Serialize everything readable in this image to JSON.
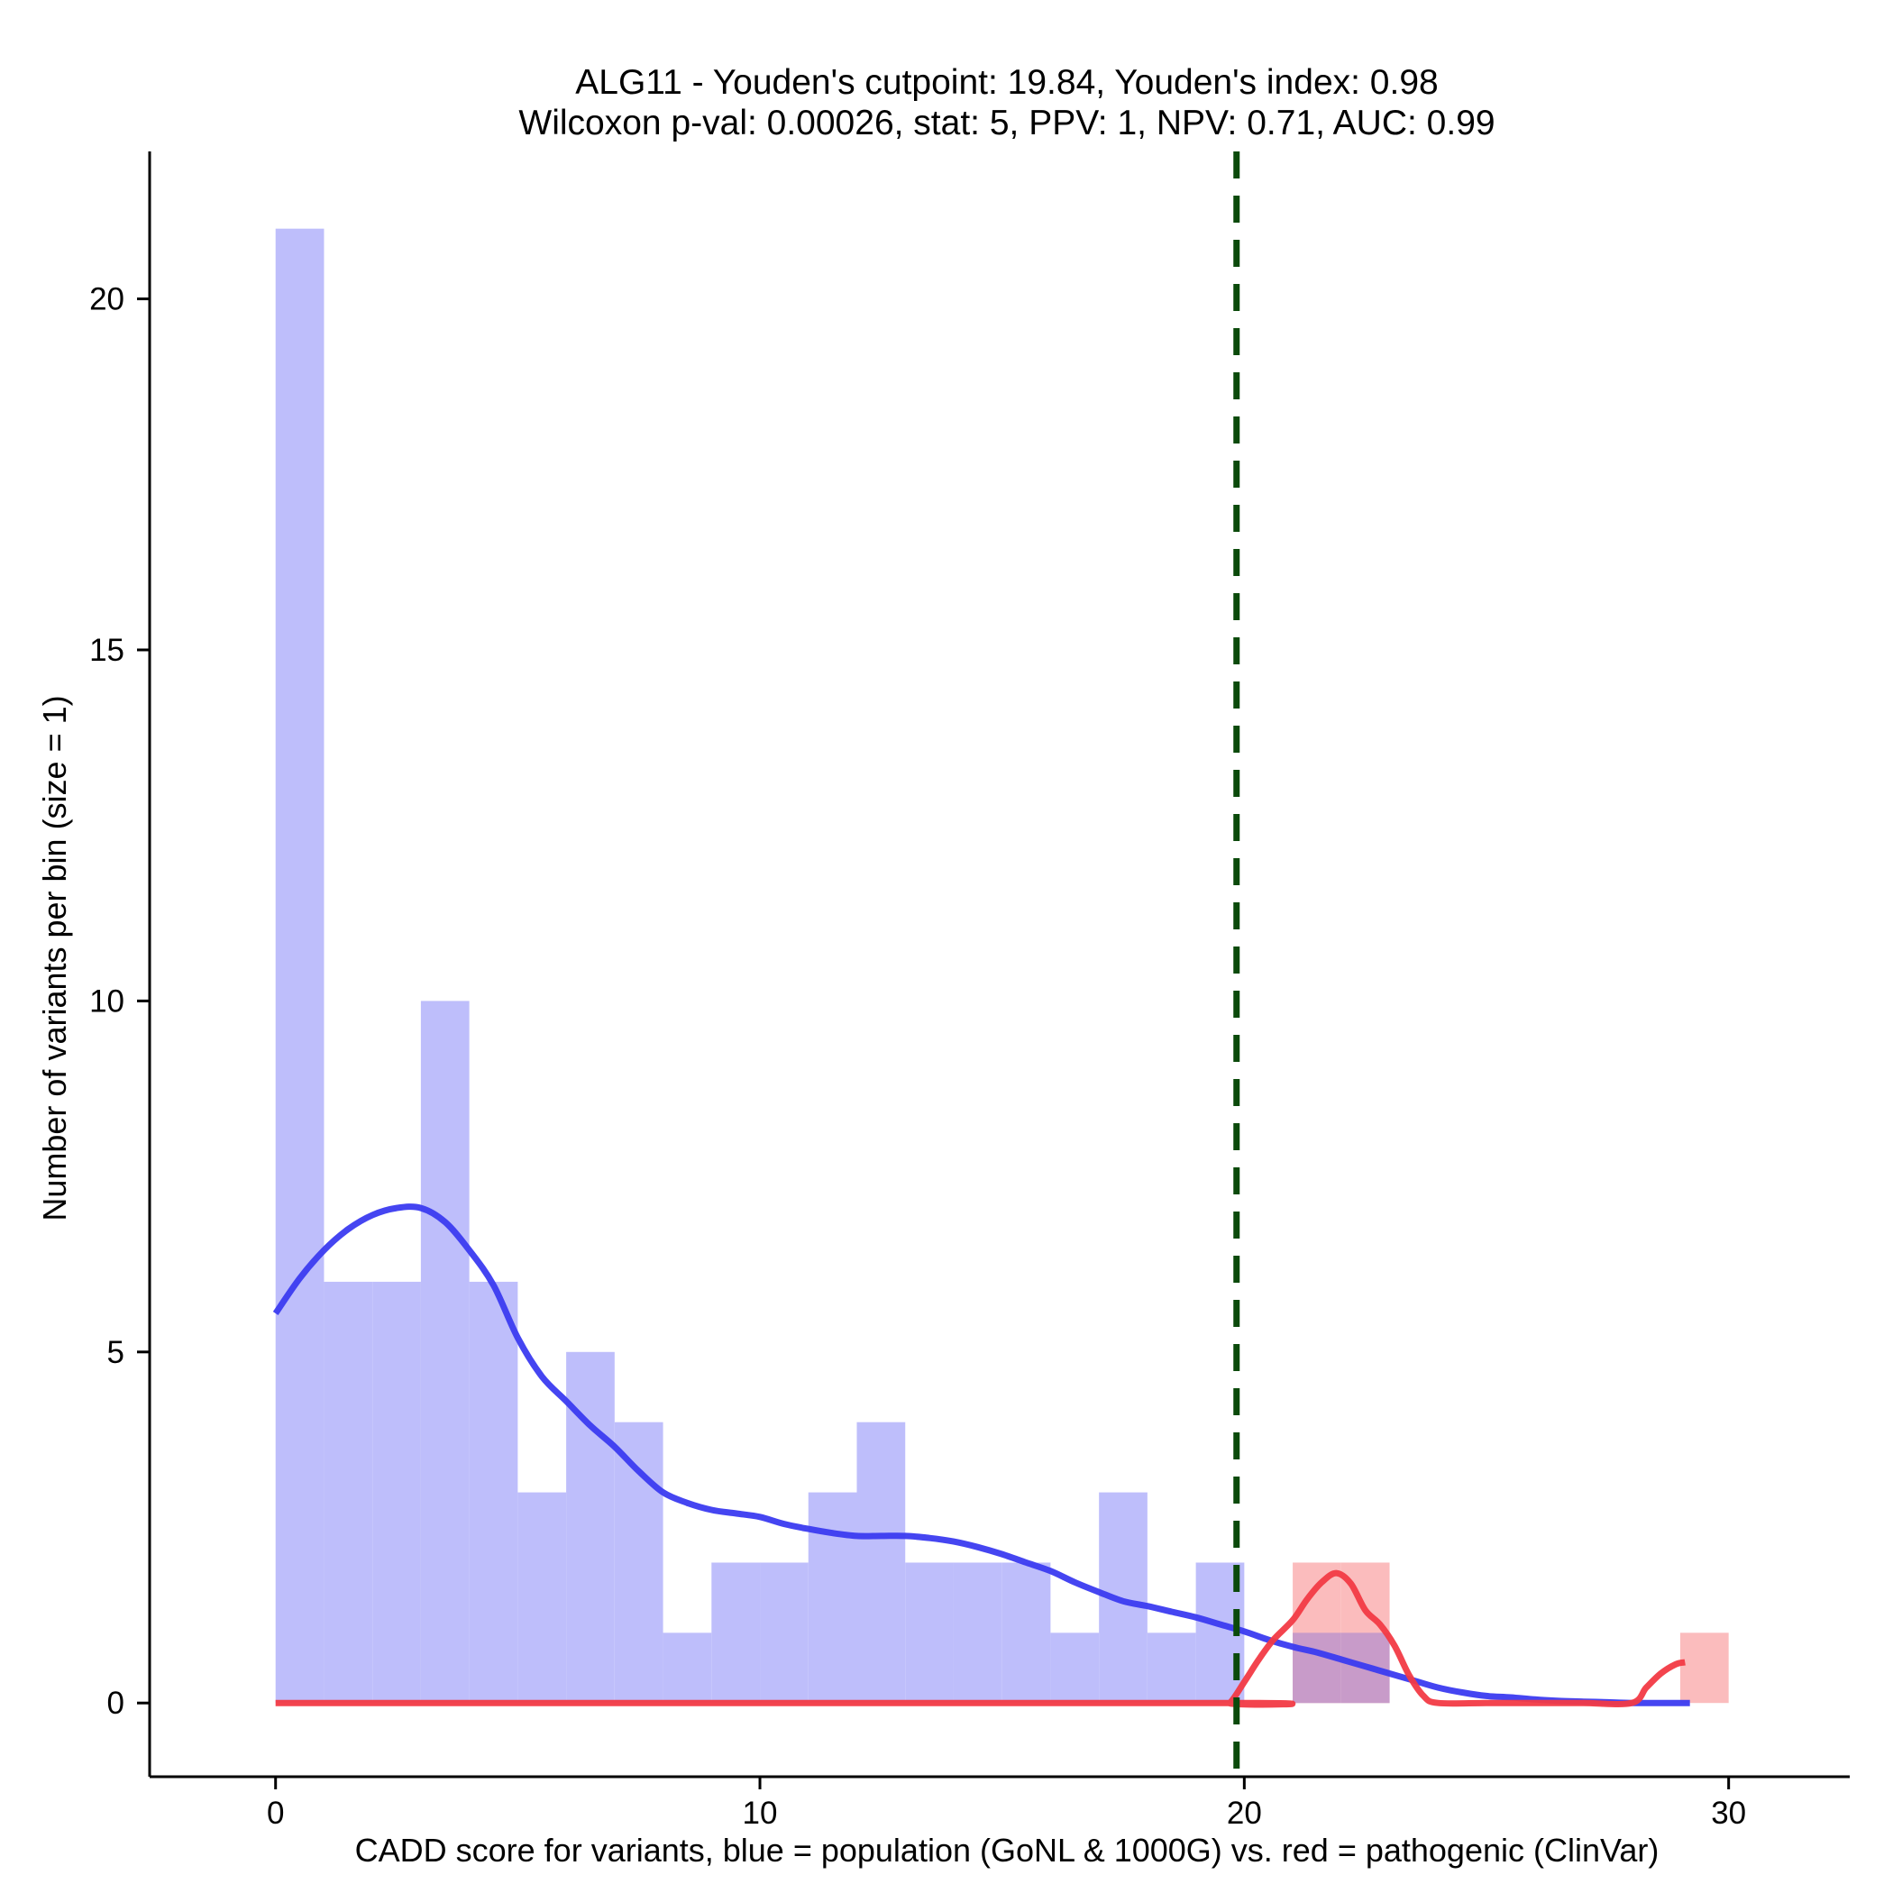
{
  "chart_data": {
    "type": "bar",
    "title": "ALG11 - Youden's cutpoint: 19.84, Youden's index: 0.98",
    "subtitle": "Wilcoxon p-val: 0.00026, stat: 5, PPV: 1, NPV: 0.71, AUC: 0.99",
    "xlabel": "CADD score for variants, blue = population (GoNL & 1000G) vs. red = pathogenic (ClinVar)",
    "ylabel": "Number of variants per bin (size = 1)",
    "xlim": [
      -2.6,
      32.5
    ],
    "ylim": [
      -1.05,
      22.1
    ],
    "x_ticks": [
      0,
      10,
      20,
      30
    ],
    "y_ticks": [
      0,
      5,
      10,
      15,
      20
    ],
    "grid": false,
    "legend": "none",
    "cutpoint": 19.84,
    "colors": {
      "population_bar": "#bebefb",
      "pathogenic_bar": "#fbbcbd",
      "overlap_bar": "#c89bc9",
      "population_curve": "#3b3bf0",
      "pathogenic_curve": "#f23a45",
      "cutpoint_line": "#0b4a0b"
    },
    "series": [
      {
        "name": "population",
        "bin_start": 0,
        "bin_width": 1,
        "values": [
          21,
          6,
          6,
          10,
          6,
          3,
          5,
          4,
          1,
          2,
          2,
          3,
          4,
          2,
          2,
          2,
          1,
          3,
          1,
          2,
          0,
          1,
          1,
          0,
          0,
          0,
          0,
          0,
          0,
          0
        ]
      },
      {
        "name": "pathogenic",
        "bin_start": 0,
        "bin_width": 1,
        "values": [
          0,
          0,
          0,
          0,
          0,
          0,
          0,
          0,
          0,
          0,
          0,
          0,
          0,
          0,
          0,
          0,
          0,
          0,
          0,
          0,
          0,
          2,
          2,
          0,
          0,
          0,
          0,
          0,
          0,
          1
        ]
      }
    ],
    "curves": [
      {
        "name": "population density",
        "x": [
          0,
          0.5,
          1,
          1.5,
          2,
          2.5,
          3,
          3.5,
          4,
          4.5,
          5,
          5.5,
          6,
          6.5,
          7,
          7.5,
          8,
          8.5,
          9,
          9.5,
          10,
          10.5,
          11,
          11.5,
          12,
          12.5,
          13,
          13.5,
          14,
          14.5,
          15,
          15.5,
          16,
          16.5,
          17,
          17.5,
          18,
          18.5,
          19,
          19.5,
          20,
          20.5,
          21,
          21.5,
          22,
          22.5,
          23,
          23.5,
          24,
          24.5,
          25,
          25.5,
          26,
          26.5,
          27,
          27.5,
          28,
          28.5,
          29,
          29.2
        ],
        "y": [
          5.55,
          6.05,
          6.45,
          6.75,
          6.95,
          7.05,
          7.05,
          6.85,
          6.45,
          5.95,
          5.2,
          4.65,
          4.3,
          3.95,
          3.65,
          3.3,
          3.0,
          2.85,
          2.75,
          2.7,
          2.65,
          2.55,
          2.48,
          2.42,
          2.38,
          2.38,
          2.38,
          2.35,
          2.3,
          2.22,
          2.12,
          2.0,
          1.88,
          1.72,
          1.58,
          1.45,
          1.38,
          1.3,
          1.22,
          1.12,
          1.02,
          0.9,
          0.8,
          0.72,
          0.62,
          0.52,
          0.42,
          0.32,
          0.22,
          0.15,
          0.1,
          0.08,
          0.05,
          0.03,
          0.02,
          0.01,
          0.0,
          0.0,
          0.0,
          0.0
        ]
      },
      {
        "name": "pathogenic density",
        "x": [
          0,
          19.5,
          19.7,
          20,
          20.3,
          20.6,
          21,
          21.3,
          21.6,
          21.9,
          22.2,
          22.5,
          22.8,
          23.1,
          23.4,
          23.7,
          24,
          25,
          26,
          27,
          28,
          28.3,
          28.6,
          28.9,
          29.1
        ],
        "y": [
          0,
          0,
          0,
          0.3,
          0.62,
          0.9,
          1.18,
          1.48,
          1.72,
          1.85,
          1.7,
          1.32,
          1.12,
          0.82,
          0.4,
          0.1,
          0.0,
          0.0,
          0.0,
          0.0,
          0.0,
          0.22,
          0.42,
          0.55,
          0.58
        ]
      }
    ]
  }
}
